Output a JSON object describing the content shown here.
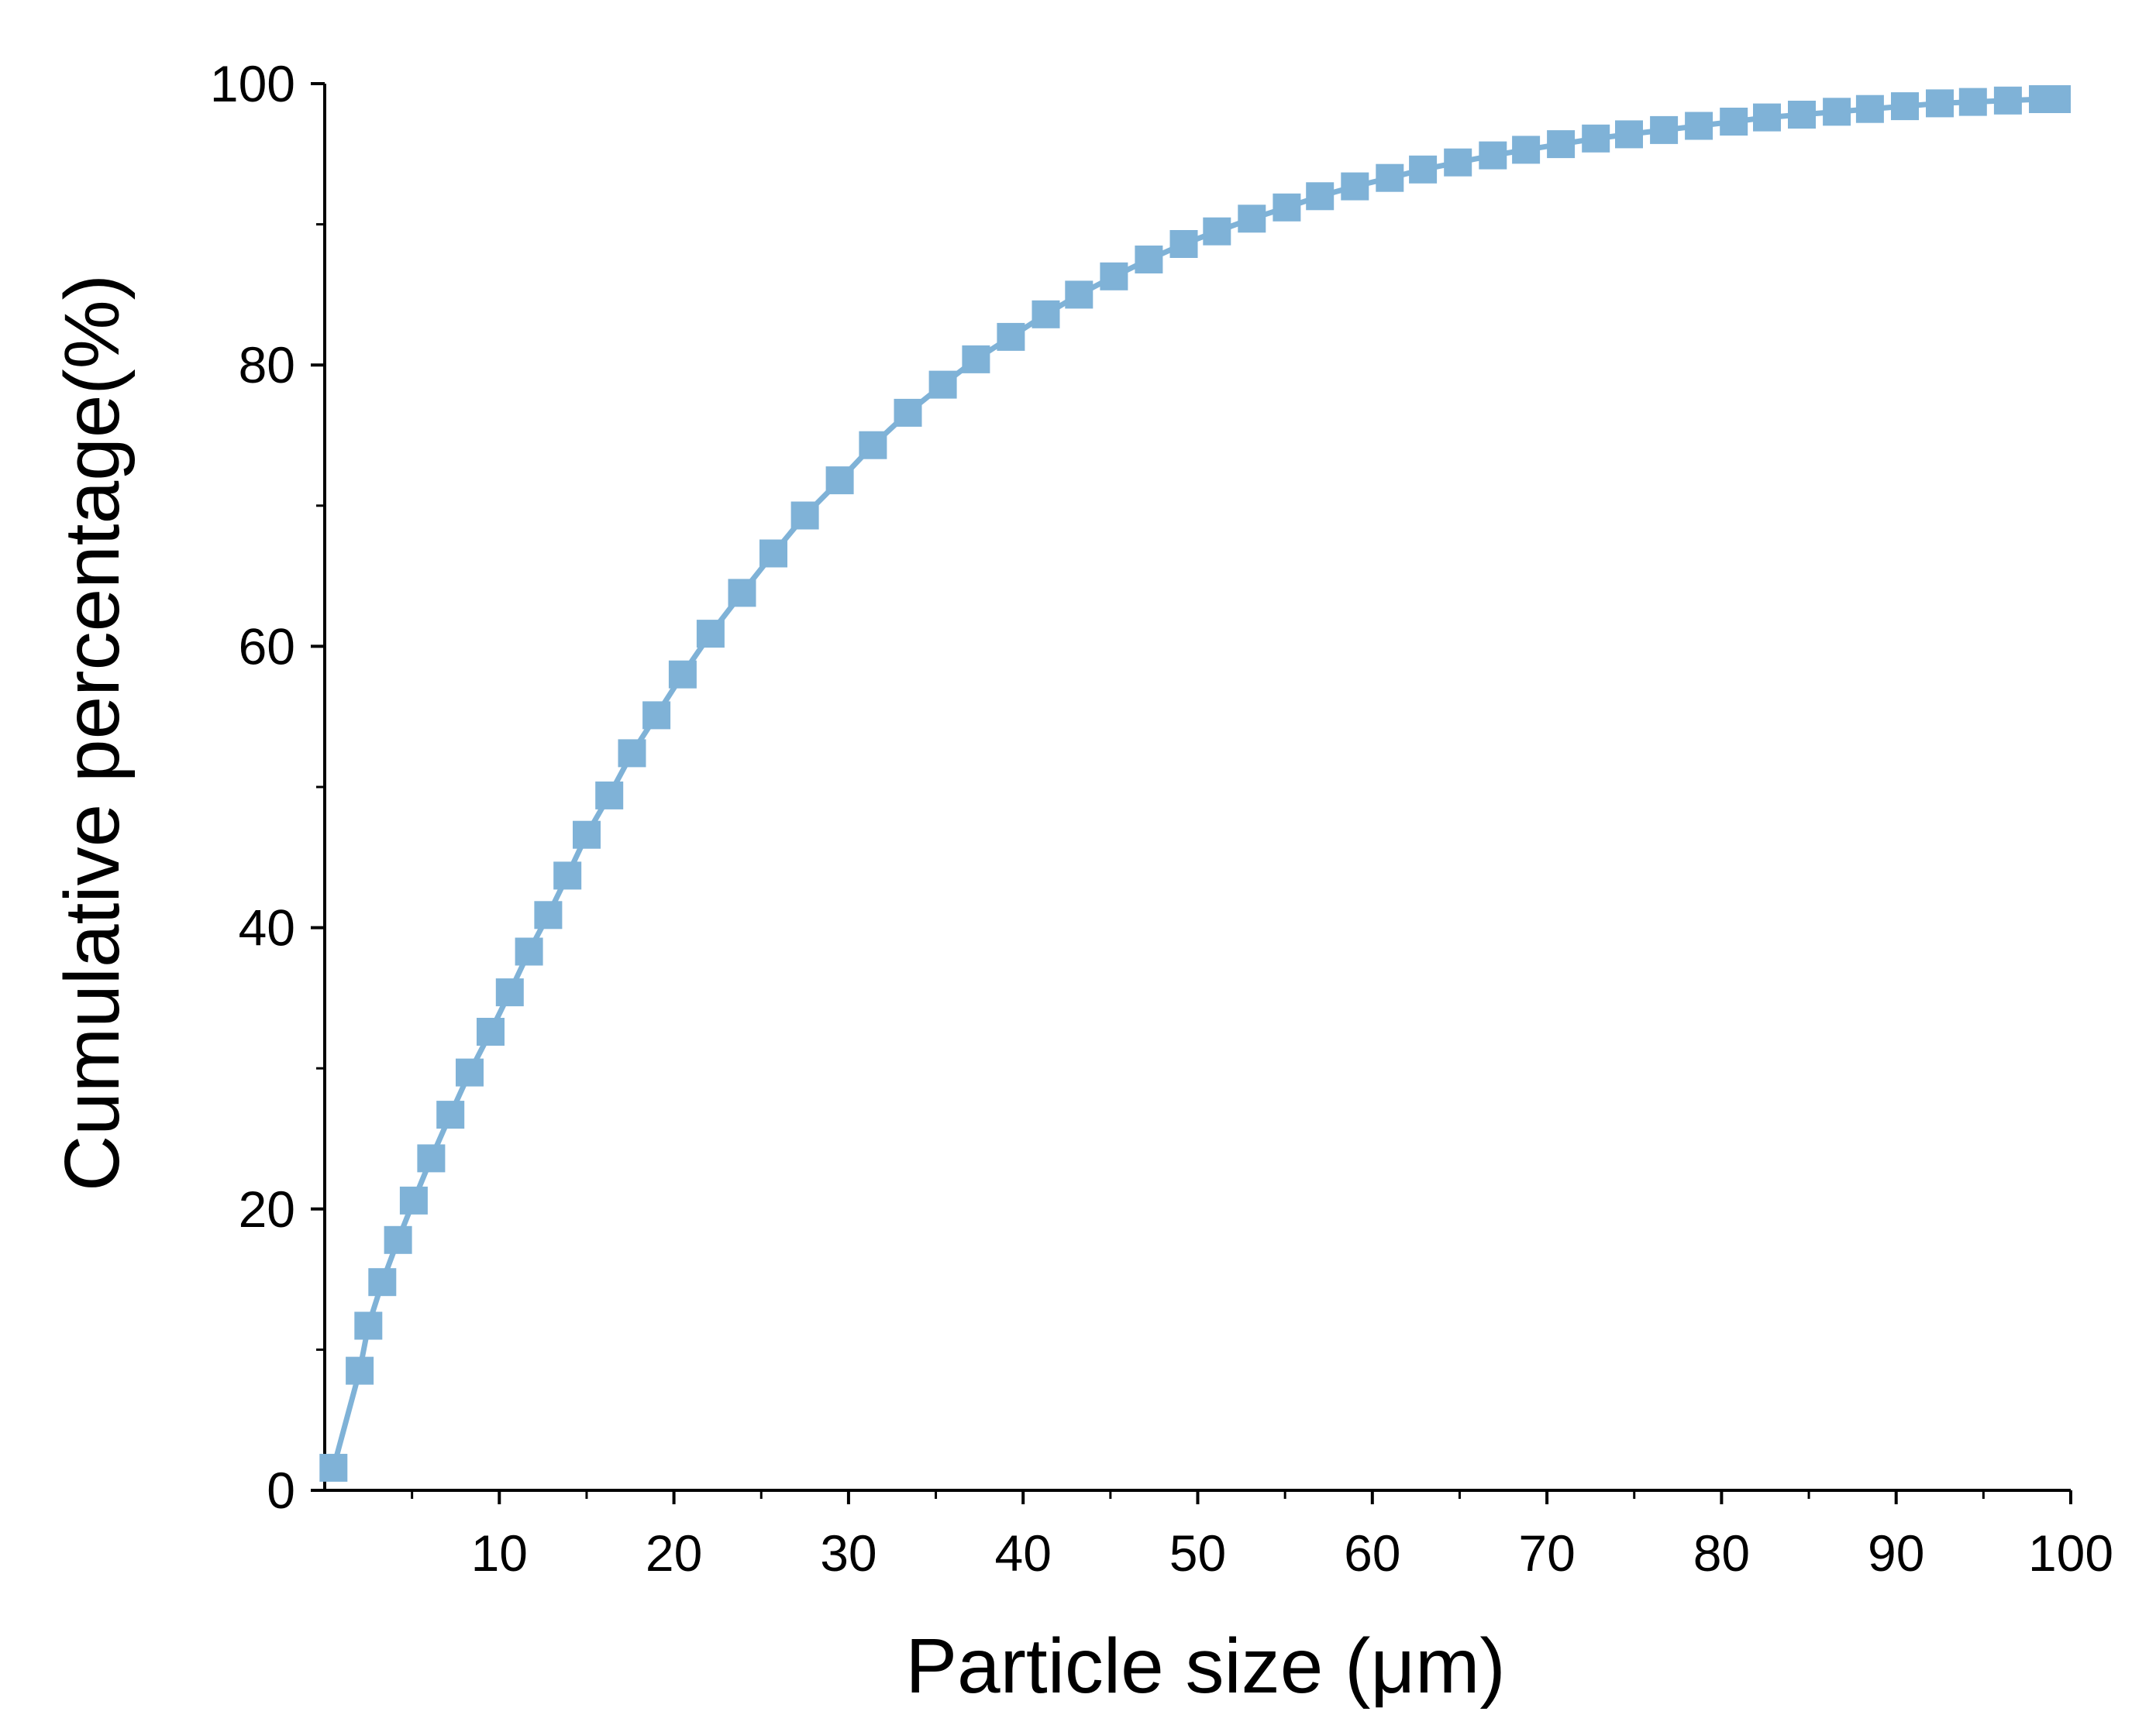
{
  "chart_data": {
    "type": "line",
    "title": "",
    "xlabel": "Particle size (μm)",
    "ylabel": "Cumulative percentage(%)",
    "xlim": [
      0,
      100
    ],
    "ylim": [
      0,
      100
    ],
    "x_major_ticks": [
      10,
      20,
      30,
      40,
      50,
      60,
      70,
      80,
      90,
      100
    ],
    "x_minor_ticks": [
      5,
      15,
      25,
      35,
      45,
      55,
      65,
      75,
      85,
      95
    ],
    "y_major_ticks": [
      0,
      20,
      40,
      60,
      80,
      100
    ],
    "y_minor_ticks": [
      10,
      30,
      50,
      70,
      90
    ],
    "x_tick_labels": [
      "10",
      "20",
      "30",
      "40",
      "50",
      "60",
      "70",
      "80",
      "90",
      "100"
    ],
    "y_tick_labels": [
      "0",
      "20",
      "40",
      "60",
      "80",
      "100"
    ],
    "grid": false,
    "legend": "none",
    "marker": "square",
    "color": "#7fb2d7",
    "series": [
      {
        "x": [
          0.5,
          2.0,
          2.5,
          3.3,
          4.2,
          5.1,
          6.1,
          7.2,
          8.3,
          9.5,
          10.6,
          11.7,
          12.8,
          13.9,
          15.0,
          16.3,
          17.6,
          19.0,
          20.5,
          22.1,
          23.9,
          25.7,
          27.5,
          29.5,
          31.4,
          33.4,
          35.4,
          37.3,
          39.3,
          41.3,
          43.2,
          45.2,
          47.2,
          49.2,
          51.1,
          53.1,
          55.1,
          57.0,
          59.0,
          61.0,
          62.9,
          64.9,
          66.9,
          68.8,
          70.8,
          72.8,
          74.7,
          76.7,
          78.7,
          80.7,
          82.6,
          84.6,
          86.6,
          88.5,
          90.5,
          92.5,
          94.4,
          96.4,
          98.4,
          99.2
        ],
        "y": [
          1.6,
          8.5,
          11.7,
          14.8,
          17.8,
          20.6,
          23.6,
          26.7,
          29.7,
          32.6,
          35.4,
          38.3,
          40.9,
          43.7,
          46.6,
          49.4,
          52.4,
          55.1,
          58.0,
          60.9,
          63.8,
          66.6,
          69.3,
          71.8,
          74.3,
          76.6,
          78.6,
          80.4,
          82.0,
          83.6,
          85.0,
          86.3,
          87.5,
          88.6,
          89.5,
          90.4,
          91.2,
          92.0,
          92.7,
          93.3,
          93.9,
          94.4,
          94.9,
          95.3,
          95.7,
          96.1,
          96.4,
          96.7,
          97.0,
          97.3,
          97.6,
          97.8,
          98.0,
          98.2,
          98.4,
          98.6,
          98.7,
          98.8,
          98.9,
          98.9
        ]
      }
    ]
  }
}
